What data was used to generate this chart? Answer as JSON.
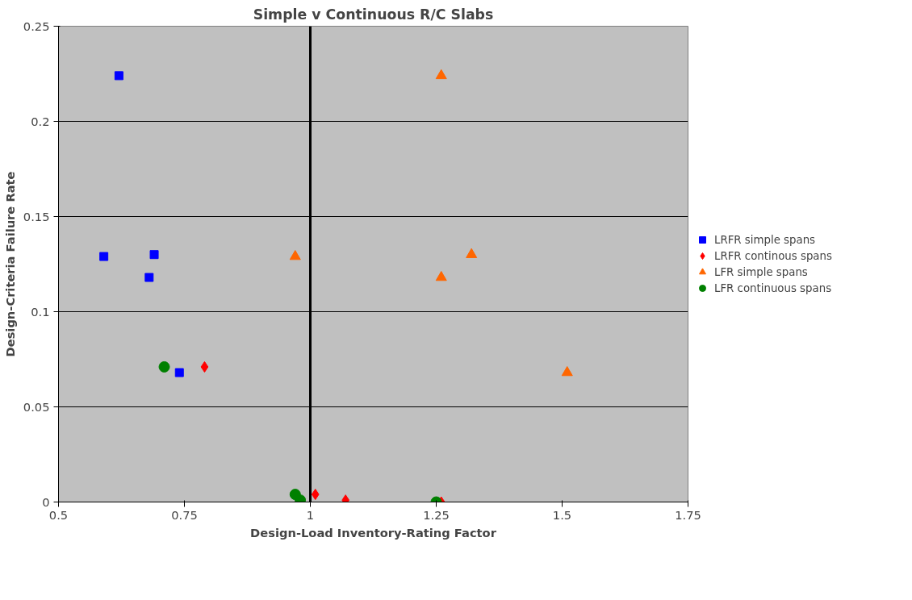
{
  "chart_data": {
    "type": "scatter",
    "title": "Simple v Continuous R/C Slabs",
    "xlabel": "Design-Load Inventory-Rating Factor",
    "ylabel": "Design-Criteria Failure Rate",
    "xlim": [
      0.5,
      1.75
    ],
    "xticks": [
      0.5,
      0.75,
      1,
      1.25,
      1.5,
      1.75
    ],
    "ylim": [
      0,
      0.25
    ],
    "yticks": [
      0,
      0.05,
      0.1,
      0.15,
      0.2,
      0.25
    ],
    "grid": "y",
    "legend": "right",
    "ref_lines": [
      {
        "axis": "x",
        "value": 1,
        "color": "#000000"
      }
    ],
    "series": [
      {
        "name": "LRFR simple spans",
        "color": "#0000ff",
        "marker": "square",
        "x": [
          0.62,
          0.59,
          0.69,
          0.68,
          0.74
        ],
        "values": [
          0.224,
          0.129,
          0.13,
          0.118,
          0.068
        ]
      },
      {
        "name": "LRFR continous spans",
        "color": "#ff0000",
        "marker": "diamond",
        "x": [
          0.79,
          1.01,
          1.07,
          1.26
        ],
        "values": [
          0.071,
          0.004,
          0.001,
          0
        ]
      },
      {
        "name": "LFR simple spans",
        "color": "#ff6600",
        "marker": "triangle",
        "x": [
          1.26,
          0.97,
          1.26,
          1.32,
          1.51
        ],
        "values": [
          0.224,
          0.129,
          0.118,
          0.13,
          0.068
        ]
      },
      {
        "name": "LFR continuous spans",
        "color": "#008000",
        "marker": "circle",
        "x": [
          0.71,
          0.97,
          0.98,
          1.25
        ],
        "values": [
          0.071,
          0.004,
          0.001,
          0
        ]
      }
    ]
  }
}
